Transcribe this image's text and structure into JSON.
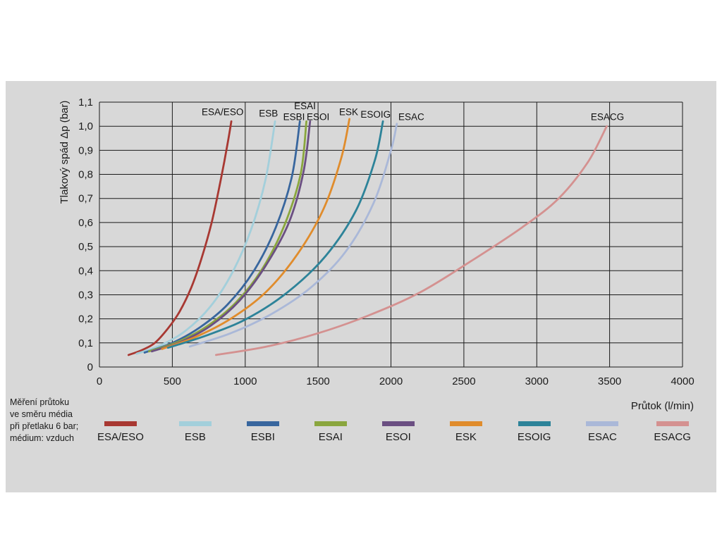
{
  "panel": {
    "bg": "#d8d8d8"
  },
  "footnote": {
    "lines": [
      "Měření průtoku",
      "ve směru média",
      "při přetlaku 6 bar;",
      "médium: vzduch"
    ]
  },
  "chart_data": {
    "type": "line",
    "title": "",
    "xlabel": "Průtok (l/min)",
    "ylabel": "Tlakový spád Δp (bar)",
    "xlim": [
      0,
      4000
    ],
    "ylim": [
      0,
      1.1
    ],
    "grid": true,
    "legend_position": "bottom",
    "x_ticks": [
      0,
      500,
      1000,
      1500,
      2000,
      2500,
      3000,
      3500,
      4000
    ],
    "x_tick_labels": [
      "0",
      "500",
      "1000",
      "1500",
      "2000",
      "2500",
      "3000",
      "3500",
      "4000"
    ],
    "y_ticks": [
      0,
      0.1,
      0.2,
      0.3,
      0.4,
      0.5,
      0.6,
      0.7,
      0.8,
      0.9,
      1.0,
      1.1
    ],
    "y_tick_labels": [
      "0",
      "0,1",
      "0,2",
      "0,3",
      "0,4",
      "0,5",
      "0,6",
      "0,7",
      "0,8",
      "0,9",
      "1,0",
      "1,1"
    ],
    "series": [
      {
        "name": "ESA/ESO",
        "color": "#a83832",
        "label_pos": [
          845,
          1.06
        ],
        "points": [
          [
            200,
            0.05
          ],
          [
            290,
            0.07
          ],
          [
            380,
            0.1
          ],
          [
            470,
            0.16
          ],
          [
            550,
            0.23
          ],
          [
            630,
            0.33
          ],
          [
            700,
            0.45
          ],
          [
            770,
            0.6
          ],
          [
            830,
            0.77
          ],
          [
            880,
            0.93
          ],
          [
            905,
            1.02
          ]
        ]
      },
      {
        "name": "ESB",
        "color": "#a3cfdb",
        "label_pos": [
          1160,
          1.055
        ],
        "points": [
          [
            255,
            0.055
          ],
          [
            420,
            0.09
          ],
          [
            590,
            0.15
          ],
          [
            760,
            0.25
          ],
          [
            910,
            0.39
          ],
          [
            1040,
            0.57
          ],
          [
            1140,
            0.78
          ],
          [
            1205,
            1.02
          ]
        ]
      },
      {
        "name": "ESBI",
        "color": "#38669e",
        "label_pos": [
          1335,
          1.04
        ],
        "points": [
          [
            310,
            0.06
          ],
          [
            500,
            0.1
          ],
          [
            690,
            0.165
          ],
          [
            880,
            0.26
          ],
          [
            1060,
            0.4
          ],
          [
            1210,
            0.58
          ],
          [
            1320,
            0.79
          ],
          [
            1375,
            1.02
          ]
        ]
      },
      {
        "name": "ESAI",
        "color": "#8aa63e",
        "label_pos": [
          1410,
          1.085
        ],
        "points": [
          [
            340,
            0.065
          ],
          [
            540,
            0.105
          ],
          [
            740,
            0.17
          ],
          [
            940,
            0.27
          ],
          [
            1120,
            0.41
          ],
          [
            1270,
            0.59
          ],
          [
            1380,
            0.8
          ],
          [
            1420,
            1.02
          ]
        ]
      },
      {
        "name": "ESOI",
        "color": "#6b4f82",
        "label_pos": [
          1500,
          1.04
        ],
        "points": [
          [
            360,
            0.065
          ],
          [
            560,
            0.105
          ],
          [
            760,
            0.17
          ],
          [
            960,
            0.275
          ],
          [
            1140,
            0.42
          ],
          [
            1300,
            0.6
          ],
          [
            1400,
            0.81
          ],
          [
            1445,
            1.02
          ]
        ]
      },
      {
        "name": "ESK",
        "color": "#e08c2c",
        "label_pos": [
          1710,
          1.06
        ],
        "points": [
          [
            430,
            0.075
          ],
          [
            660,
            0.125
          ],
          [
            900,
            0.2
          ],
          [
            1140,
            0.31
          ],
          [
            1360,
            0.47
          ],
          [
            1540,
            0.66
          ],
          [
            1660,
            0.87
          ],
          [
            1715,
            1.03
          ]
        ]
      },
      {
        "name": "ESOIG",
        "color": "#2d8399",
        "label_pos": [
          1895,
          1.05
        ],
        "points": [
          [
            470,
            0.08
          ],
          [
            730,
            0.13
          ],
          [
            1010,
            0.2
          ],
          [
            1290,
            0.31
          ],
          [
            1550,
            0.46
          ],
          [
            1760,
            0.65
          ],
          [
            1890,
            0.86
          ],
          [
            1945,
            1.02
          ]
        ]
      },
      {
        "name": "ESAC",
        "color": "#aab8d8",
        "label_pos": [
          2140,
          1.04
        ],
        "points": [
          [
            620,
            0.085
          ],
          [
            900,
            0.14
          ],
          [
            1180,
            0.22
          ],
          [
            1450,
            0.33
          ],
          [
            1690,
            0.48
          ],
          [
            1880,
            0.68
          ],
          [
            2000,
            0.9
          ],
          [
            2040,
            1.01
          ]
        ]
      },
      {
        "name": "ESACG",
        "color": "#d49190",
        "label_pos": [
          3485,
          1.04
        ],
        "points": [
          [
            800,
            0.05
          ],
          [
            1150,
            0.085
          ],
          [
            1500,
            0.14
          ],
          [
            1850,
            0.215
          ],
          [
            2200,
            0.31
          ],
          [
            2550,
            0.44
          ],
          [
            2900,
            0.58
          ],
          [
            3150,
            0.7
          ],
          [
            3350,
            0.85
          ],
          [
            3480,
            1.0
          ]
        ]
      }
    ]
  }
}
